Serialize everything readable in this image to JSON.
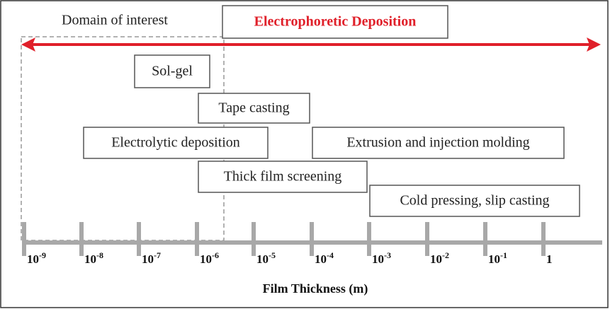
{
  "header": {
    "title": "Electrophoretic Deposition",
    "domain": "Domain of interest"
  },
  "methods": [
    "Sol-gel",
    "Tape casting",
    "Electrolytic deposition",
    "Extrusion and injection molding",
    "Thick film screening",
    "Cold pressing, slip casting"
  ],
  "axis": {
    "title": "Film Thickness (m)",
    "ticks": [
      {
        "base": "10",
        "exponent": "-9"
      },
      {
        "base": "10",
        "exponent": "-8"
      },
      {
        "base": "10",
        "exponent": "-7"
      },
      {
        "base": "10",
        "exponent": "-6"
      },
      {
        "base": "10",
        "exponent": "-5"
      },
      {
        "base": "10",
        "exponent": "-4"
      },
      {
        "base": "10",
        "exponent": "-3"
      },
      {
        "base": "10",
        "exponent": "-2"
      },
      {
        "base": "10",
        "exponent": "-1"
      },
      {
        "base": "1"
      }
    ]
  }
}
